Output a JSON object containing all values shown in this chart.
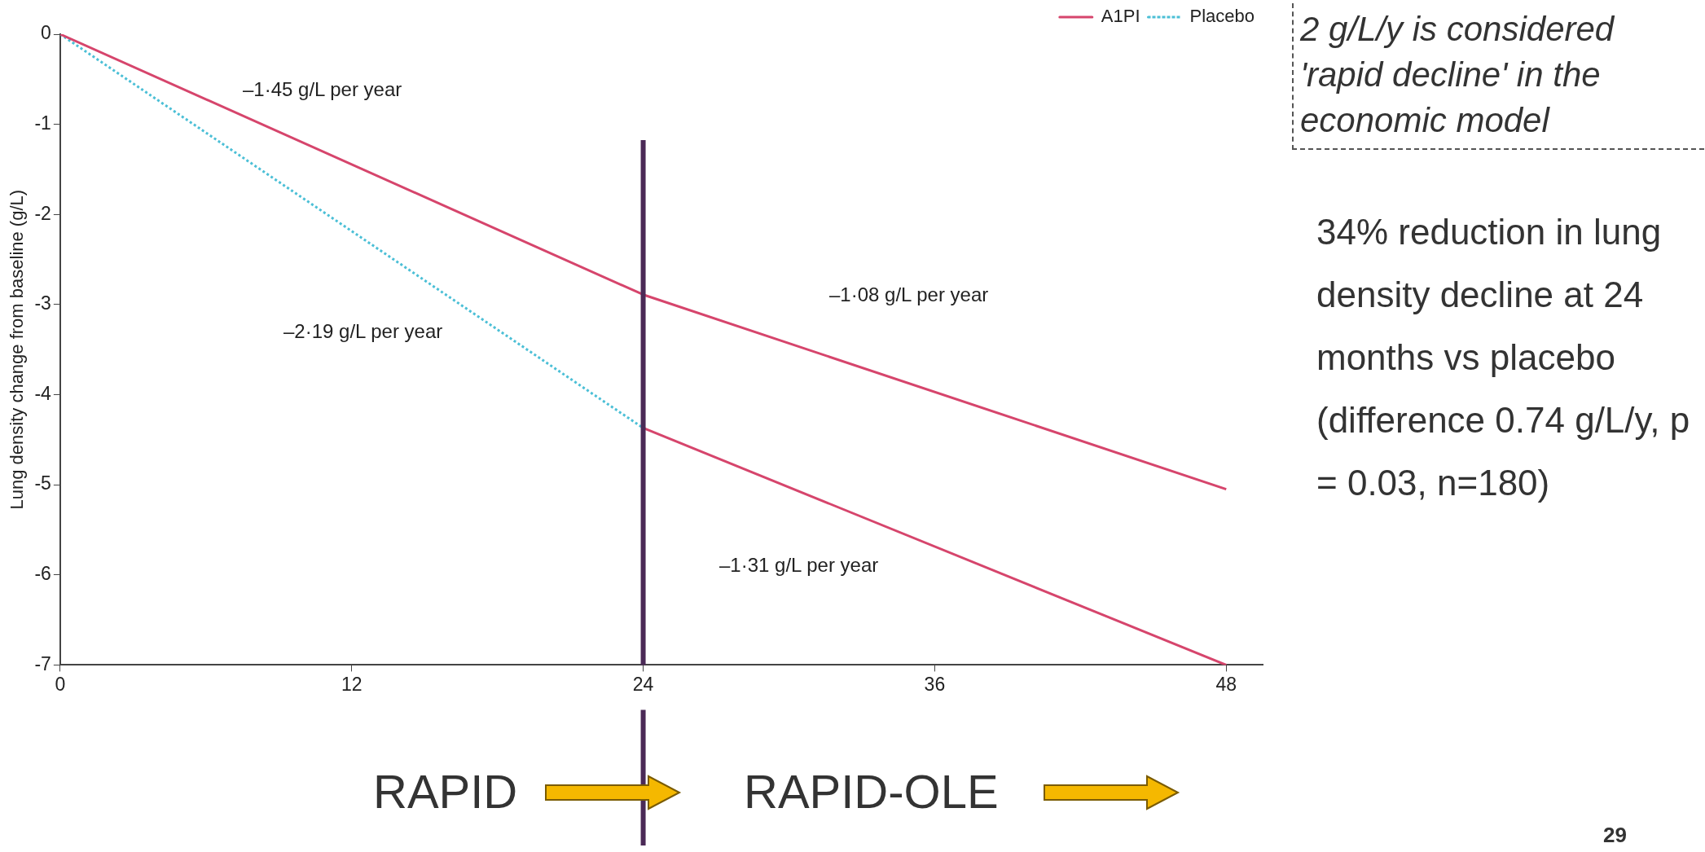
{
  "chart_data": {
    "type": "line",
    "ylabel": "Lung density change from baseline (g/L)",
    "xlim": [
      0,
      49.5
    ],
    "xticks": [
      0,
      12,
      24,
      36,
      48
    ],
    "ylim": [
      -7,
      0
    ],
    "yticks": [
      0,
      -1,
      -2,
      -3,
      -4,
      -5,
      -6,
      -7
    ],
    "grid": false,
    "legend": "top right",
    "marker": "none",
    "series": [
      {
        "name": "A1PI",
        "color": "#d6456c",
        "x": [
          0,
          24,
          48
        ],
        "values": [
          0,
          -2.89,
          -5.05
        ],
        "line_style": "solid"
      },
      {
        "name": "Placebo",
        "color": "#4bbfd6",
        "x": [
          0,
          24
        ],
        "values": [
          0,
          -4.37
        ],
        "line_style": "dotted"
      },
      {
        "color": "#d6456c",
        "x": [
          24,
          48
        ],
        "values": [
          -4.37,
          -7
        ],
        "line_style": "solid"
      }
    ],
    "ref_lines": [
      {
        "axis": "x",
        "value": 24,
        "color": "#4b2a57"
      }
    ],
    "annotations": [
      "–1·45 g/L per year",
      "–2·19 g/L per year",
      "–1·08 g/L per year",
      "–1·31 g/L per year",
      "2 g/L/y is considered 'rapid decline' in the economic model",
      "34% reduction in lung density decline at 24 months vs placebo (difference 0.74 g/L/y, p = 0.03, n=180)",
      "RAPID",
      "RAPID-OLE",
      "29"
    ]
  }
}
